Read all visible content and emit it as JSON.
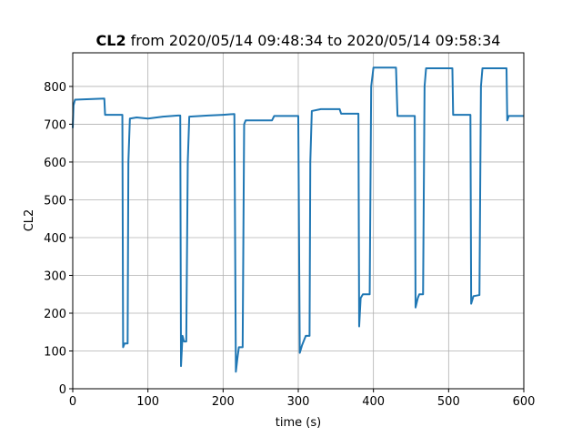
{
  "chart_data": {
    "type": "line",
    "title_parts": [
      "CL2",
      "from 2020/05/14 09:48:34 to 2020/05/14 09:58:34"
    ],
    "xlabel": "time (s)",
    "ylabel": "CL2",
    "xlim": [
      0,
      600
    ],
    "ylim": [
      0,
      889
    ],
    "xticks": [
      0,
      100,
      200,
      300,
      400,
      500,
      600
    ],
    "yticks": [
      0,
      100,
      200,
      300,
      400,
      500,
      600,
      700,
      800
    ],
    "grid": true,
    "series": [
      {
        "color": "#1f77b4",
        "x": [
          0,
          1,
          3,
          42,
          43,
          66,
          67,
          69,
          73,
          74,
          76,
          85,
          100,
          120,
          140,
          143,
          144,
          146,
          148,
          151,
          153,
          155,
          180,
          200,
          215,
          217,
          219,
          221,
          226,
          228,
          230,
          265,
          268,
          300,
          302,
          305,
          310,
          315,
          316,
          318,
          330,
          355,
          357,
          380,
          381,
          383,
          386,
          395,
          397,
          400,
          430,
          432,
          455,
          456,
          459,
          461,
          466,
          468,
          470,
          505,
          506,
          529,
          530,
          533,
          541,
          543,
          545,
          577,
          578,
          580,
          600
        ],
        "values": [
          690,
          750,
          765,
          768,
          725,
          725,
          110,
          120,
          120,
          600,
          715,
          718,
          715,
          720,
          723,
          723,
          60,
          140,
          125,
          125,
          600,
          720,
          723,
          725,
          727,
          45,
          80,
          110,
          110,
          700,
          710,
          710,
          722,
          722,
          95,
          115,
          140,
          140,
          600,
          735,
          740,
          740,
          728,
          728,
          165,
          240,
          250,
          250,
          800,
          850,
          850,
          722,
          722,
          215,
          240,
          250,
          250,
          800,
          848,
          848,
          725,
          725,
          225,
          245,
          248,
          800,
          848,
          848,
          710,
          722,
          722
        ]
      }
    ]
  }
}
